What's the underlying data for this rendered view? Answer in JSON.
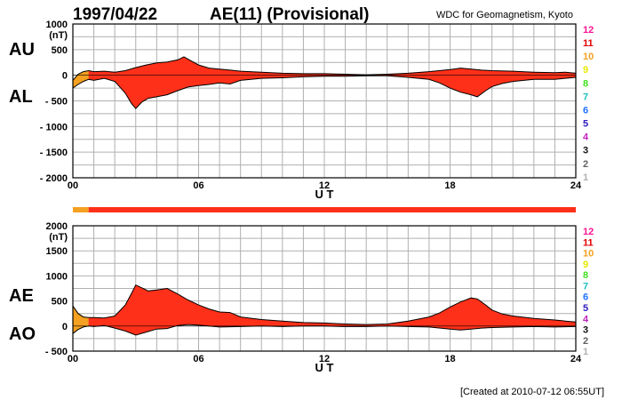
{
  "header": {
    "date": "1997/04/22",
    "title": "AE(11) (Provisional)",
    "source": "WDC for Geomagnetism, Kyoto"
  },
  "footer": {
    "created": "[Created at 2010-07-12 06:55UT]"
  },
  "colors": {
    "fill_main": "#ff3019",
    "fill_early": "#f4a020",
    "grid": "#b0b0b0",
    "text": "#000000"
  },
  "station_scale": {
    "labels": [
      "12",
      "11",
      "10",
      "9",
      "8",
      "7",
      "6",
      "5",
      "4",
      "3",
      "2",
      "1"
    ],
    "colors": [
      "#ff1493",
      "#e00000",
      "#f4a020",
      "#e8e800",
      "#40e020",
      "#20c0c0",
      "#2070ff",
      "#3020c0",
      "#c020c0",
      "#101010",
      "#606060",
      "#b0b0b0"
    ]
  },
  "coverage_bar": {
    "segments": [
      {
        "from": 0,
        "to": 0.75,
        "color": "#f4a020"
      },
      {
        "from": 0.75,
        "to": 24,
        "color": "#ff3019"
      }
    ]
  },
  "chart_data": [
    {
      "type": "area",
      "panel": "AU/AL",
      "side_labels": [
        "AU",
        "AL"
      ],
      "ylabel": "(nT)",
      "xlabel": "U T",
      "xlim": [
        0,
        24
      ],
      "ylim": [
        -2000,
        1000
      ],
      "xticks": [
        "00",
        "06",
        "12",
        "18",
        "24"
      ],
      "yticks": [
        "1000",
        "500",
        "0",
        "- 500",
        "- 1000",
        "- 1500",
        "- 2000"
      ],
      "ytick_values": [
        1000,
        500,
        0,
        -500,
        -1000,
        -1500,
        -2000
      ],
      "grid": true,
      "series": [
        {
          "upper": [
            [
              0,
              -100
            ],
            [
              0.25,
              20
            ],
            [
              0.5,
              70
            ],
            [
              0.75,
              90
            ],
            [
              1,
              70
            ],
            [
              1.5,
              80
            ],
            [
              2,
              60
            ],
            [
              2.5,
              90
            ],
            [
              3,
              150
            ],
            [
              3.5,
              200
            ],
            [
              4,
              240
            ],
            [
              4.5,
              260
            ],
            [
              5,
              300
            ],
            [
              5.3,
              360
            ],
            [
              5.6,
              290
            ],
            [
              6,
              200
            ],
            [
              6.5,
              140
            ],
            [
              7,
              120
            ],
            [
              7.5,
              100
            ],
            [
              8,
              80
            ],
            [
              9,
              60
            ],
            [
              10,
              40
            ],
            [
              11,
              30
            ],
            [
              12,
              30
            ],
            [
              13,
              20
            ],
            [
              14,
              10
            ],
            [
              15,
              20
            ],
            [
              16,
              40
            ],
            [
              17,
              70
            ],
            [
              18,
              110
            ],
            [
              18.5,
              140
            ],
            [
              19,
              120
            ],
            [
              19.5,
              100
            ],
            [
              20,
              90
            ],
            [
              21,
              80
            ],
            [
              22,
              60
            ],
            [
              23,
              50
            ],
            [
              23.5,
              60
            ],
            [
              24,
              40
            ]
          ],
          "lower": [
            [
              0,
              -250
            ],
            [
              0.25,
              -180
            ],
            [
              0.5,
              -120
            ],
            [
              0.75,
              -80
            ],
            [
              1,
              -100
            ],
            [
              1.5,
              -60
            ],
            [
              2,
              -120
            ],
            [
              2.5,
              -350
            ],
            [
              2.8,
              -550
            ],
            [
              3,
              -650
            ],
            [
              3.3,
              -520
            ],
            [
              3.6,
              -450
            ],
            [
              4,
              -420
            ],
            [
              4.5,
              -380
            ],
            [
              5,
              -300
            ],
            [
              5.5,
              -230
            ],
            [
              6,
              -200
            ],
            [
              6.5,
              -180
            ],
            [
              7,
              -150
            ],
            [
              7.5,
              -170
            ],
            [
              8,
              -100
            ],
            [
              9,
              -60
            ],
            [
              10,
              -50
            ],
            [
              11,
              -30
            ],
            [
              12,
              -20
            ],
            [
              13,
              -20
            ],
            [
              14,
              -10
            ],
            [
              15,
              -10
            ],
            [
              16,
              -40
            ],
            [
              17,
              -80
            ],
            [
              17.5,
              -150
            ],
            [
              18,
              -250
            ],
            [
              18.5,
              -330
            ],
            [
              19,
              -380
            ],
            [
              19.3,
              -420
            ],
            [
              19.7,
              -300
            ],
            [
              20,
              -220
            ],
            [
              20.5,
              -160
            ],
            [
              21,
              -120
            ],
            [
              22,
              -80
            ],
            [
              23,
              -80
            ],
            [
              23.5,
              -60
            ],
            [
              24,
              -40
            ]
          ]
        }
      ]
    },
    {
      "type": "area",
      "panel": "AE/AO",
      "side_labels": [
        "AE",
        "AO"
      ],
      "ylabel": "(nT)",
      "xlabel": "U T",
      "xlim": [
        0,
        24
      ],
      "ylim": [
        -500,
        2000
      ],
      "xticks": [
        "00",
        "06",
        "12",
        "18",
        "24"
      ],
      "yticks": [
        "2000",
        "1500",
        "1000",
        "500",
        "0",
        "- 500"
      ],
      "ytick_values": [
        2000,
        1500,
        1000,
        500,
        0,
        -500
      ],
      "grid": true,
      "series": [
        {
          "upper": [
            [
              0,
              400
            ],
            [
              0.25,
              250
            ],
            [
              0.5,
              180
            ],
            [
              0.75,
              170
            ],
            [
              1,
              170
            ],
            [
              1.5,
              160
            ],
            [
              2,
              200
            ],
            [
              2.5,
              420
            ],
            [
              2.8,
              650
            ],
            [
              3,
              820
            ],
            [
              3.3,
              760
            ],
            [
              3.6,
              700
            ],
            [
              4,
              720
            ],
            [
              4.5,
              750
            ],
            [
              5,
              640
            ],
            [
              5.5,
              520
            ],
            [
              6,
              420
            ],
            [
              6.5,
              340
            ],
            [
              7,
              280
            ],
            [
              7.5,
              270
            ],
            [
              8,
              180
            ],
            [
              9,
              130
            ],
            [
              10,
              100
            ],
            [
              11,
              70
            ],
            [
              12,
              60
            ],
            [
              13,
              40
            ],
            [
              14,
              30
            ],
            [
              15,
              40
            ],
            [
              16,
              100
            ],
            [
              17,
              180
            ],
            [
              17.5,
              260
            ],
            [
              18,
              380
            ],
            [
              18.5,
              480
            ],
            [
              19,
              560
            ],
            [
              19.3,
              540
            ],
            [
              19.7,
              420
            ],
            [
              20,
              320
            ],
            [
              20.5,
              240
            ],
            [
              21,
              200
            ],
            [
              22,
              150
            ],
            [
              23,
              120
            ],
            [
              23.5,
              100
            ],
            [
              24,
              80
            ]
          ],
          "lower": [
            [
              0,
              -150
            ],
            [
              0.25,
              -70
            ],
            [
              0.5,
              -20
            ],
            [
              0.75,
              0
            ],
            [
              1,
              -10
            ],
            [
              1.5,
              10
            ],
            [
              2,
              -40
            ],
            [
              2.5,
              -100
            ],
            [
              3,
              -180
            ],
            [
              3.5,
              -120
            ],
            [
              4,
              -60
            ],
            [
              4.5,
              -50
            ],
            [
              5,
              10
            ],
            [
              5.5,
              30
            ],
            [
              6,
              20
            ],
            [
              7,
              -20
            ],
            [
              8,
              -10
            ],
            [
              9,
              0
            ],
            [
              10,
              -10
            ],
            [
              11,
              0
            ],
            [
              12,
              0
            ],
            [
              13,
              -10
            ],
            [
              14,
              -10
            ],
            [
              15,
              0
            ],
            [
              16,
              -10
            ],
            [
              17,
              -20
            ],
            [
              18,
              -60
            ],
            [
              18.5,
              -80
            ],
            [
              19,
              -60
            ],
            [
              19.5,
              -40
            ],
            [
              20,
              -30
            ],
            [
              21,
              -20
            ],
            [
              22,
              -10
            ],
            [
              23,
              -20
            ],
            [
              24,
              -10
            ]
          ]
        }
      ]
    }
  ]
}
